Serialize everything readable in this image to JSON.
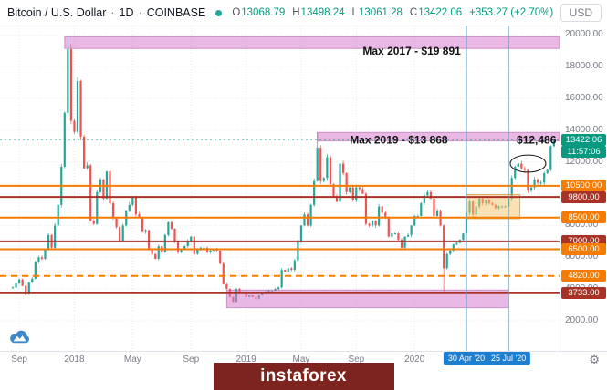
{
  "header": {
    "symbol": "Bitcoin / U.S. Dollar",
    "sep": "·",
    "interval": "1D",
    "exchange": "COINBASE",
    "ohlc": {
      "open_label": "O",
      "open": "13068.79",
      "high_label": "H",
      "high": "13498.24",
      "low_label": "L",
      "low": "13061.28",
      "close_label": "C",
      "close": "13422.06",
      "change": "+353.27 (+2.70%)"
    },
    "currency_button": "USD"
  },
  "icons": {
    "gear": "⚙"
  },
  "watermark": "instaforex",
  "chart_data": {
    "type": "candlestick",
    "title": "Bitcoin / U.S. Dollar · 1D · COINBASE",
    "ylim": [
      100,
      20600
    ],
    "up_color": "#26a69a",
    "down_color": "#ef5350",
    "closes": [
      4100,
      4350,
      4600,
      4200,
      3650,
      4400,
      4650,
      5700,
      6000,
      5900,
      6450,
      7400,
      6600,
      8000,
      9300,
      11700,
      15100,
      19100,
      14600,
      13900,
      17100,
      13600,
      11600,
      11800,
      8300,
      8100,
      10100,
      10900,
      9700,
      11400,
      9400,
      8500,
      7900,
      7000,
      8000,
      8900,
      9300,
      9800,
      8700,
      8500,
      7600,
      7700,
      6500,
      6200,
      5900,
      6700,
      6300,
      7400,
      8200,
      7800,
      7000,
      6300,
      6500,
      6700,
      7000,
      7300,
      6200,
      6500,
      6600,
      6600,
      6300,
      6400,
      6500,
      6400,
      5600,
      4300,
      4000,
      3500,
      3200,
      4000,
      3800,
      3800,
      3500,
      3600,
      3500,
      3400,
      3600,
      3700,
      3800,
      3900,
      3900,
      4000,
      4100,
      5200,
      5100,
      5300,
      5200,
      5800,
      7000,
      8000,
      8700,
      8000,
      9300,
      10800,
      12900,
      10800,
      11000,
      12300,
      10600,
      9800,
      9500,
      11900,
      11300,
      10100,
      10400,
      9600,
      10400,
      10300,
      10000,
      8100,
      8000,
      8300,
      8000,
      9200,
      8800,
      8500,
      7300,
      7500,
      7500,
      7100,
      6600,
      7300,
      7400,
      8000,
      8600,
      8600,
      9400,
      9900,
      10100,
      9700,
      8600,
      8900,
      8000,
      5300,
      6200,
      6400,
      6800,
      6900,
      7100,
      7500,
      8800,
      9500,
      8700,
      9200,
      9700,
      9400,
      9600,
      9400,
      9300,
      9100,
      9200,
      9200,
      9200,
      9700,
      11000,
      11700,
      11900,
      11600,
      11500,
      10200,
      10400,
      10900,
      10700,
      10700,
      11300,
      11500,
      13000,
      13422
    ],
    "wick_overrides": [
      {
        "i": 17,
        "high": 19891
      },
      {
        "i": 94,
        "high": 13868
      },
      {
        "i": 133,
        "low": 3850
      }
    ],
    "grid_prices": [
      2000,
      4000,
      6000,
      8000,
      10000,
      12000,
      14000,
      16000,
      18000,
      20000
    ],
    "price_labels": [
      {
        "text": "20000.00",
        "price": 20000
      },
      {
        "text": "18000.00",
        "price": 18000
      },
      {
        "text": "16000.00",
        "price": 16000
      },
      {
        "text": "14000.00",
        "price": 14000
      },
      {
        "text": "12000.00",
        "price": 12000
      },
      {
        "text": "8000.00",
        "price": 8000
      },
      {
        "text": "6000.00",
        "price": 6000
      },
      {
        "text": "4000.00",
        "price": 4000
      },
      {
        "text": "2000.00",
        "price": 2000
      }
    ],
    "price_badges": [
      {
        "text": "13422.06",
        "price": 13422.06,
        "bg": "#089981"
      },
      {
        "text": "11:57:06",
        "stack": true,
        "bg": "#089981"
      },
      {
        "text": "10500.00",
        "price": 10500,
        "bg": "#f57c00"
      },
      {
        "text": "9800.00",
        "price": 9800,
        "bg": "#a93226"
      },
      {
        "text": "8500.00",
        "price": 8500,
        "bg": "#f57c00"
      },
      {
        "text": "7000.00",
        "price": 7000,
        "bg": "#a93226"
      },
      {
        "text": "6500.00",
        "price": 6500,
        "bg": "#f57c00"
      },
      {
        "text": "4820.00",
        "price": 4820,
        "bg": "#f57c00"
      },
      {
        "text": "3733.00",
        "price": 3733,
        "bg": "#a93226"
      }
    ],
    "hlines": [
      {
        "price": 13422.06,
        "color": "#089981",
        "dash": "2 3",
        "width": 1
      },
      {
        "price": 10500,
        "color": "#f57c00",
        "width": 2
      },
      {
        "price": 9800,
        "color": "#a93226",
        "width": 2
      },
      {
        "price": 8500,
        "color": "#f57c00",
        "width": 2
      },
      {
        "price": 7000,
        "color": "#a93226",
        "width": 2
      },
      {
        "price": 6500,
        "color": "#f57c00",
        "width": 2
      },
      {
        "price": 4820,
        "color": "#f57c00",
        "dash": "7 5",
        "width": 2
      },
      {
        "price": 3733,
        "color": "#a93226",
        "width": 2
      }
    ],
    "vlines": [
      {
        "i": 140,
        "color": "#43a6d9",
        "label": "30 Apr '20",
        "badge_bg": "#1e7fd2"
      },
      {
        "i": 153,
        "color": "#43a6d9",
        "label": "25 Jul '20",
        "badge_bg": "#1e7fd2"
      }
    ],
    "bands": [
      {
        "i1": 16,
        "i2": "right",
        "p1": 19891,
        "p2": 19150,
        "fill": "rgba(217,125,205,0.55)",
        "stroke": "rgba(170,90,160,0.55)",
        "label": "Max 2017  - $19 891",
        "label_i": 108,
        "label_price": 18750
      },
      {
        "i1": 94,
        "i2": "right",
        "p1": 13868,
        "p2": 13330,
        "fill": "rgba(217,125,205,0.55)",
        "stroke": "rgba(170,90,160,0.55)",
        "label": "Max 2019  - $13 868",
        "label_i": 104,
        "label_price": 13150
      },
      {
        "i1": 66,
        "i2": 153,
        "p1": 3930,
        "p2": 2820,
        "fill": "rgba(217,125,205,0.55)",
        "stroke": "rgba(170,90,160,0.55)"
      }
    ],
    "boxes": [
      {
        "i1": 140,
        "i2": 156.5,
        "p1": 9950,
        "p2": 8430,
        "fill": "rgba(245,195,105,0.5)",
        "stroke": "rgba(205,145,45,0.7)"
      }
    ],
    "annotations": [
      {
        "text": "$12,486",
        "i": 155.5,
        "price": 13150
      }
    ],
    "ellipse": {
      "i": 159,
      "price": 11900,
      "rx_i": 5.5,
      "ry_price": 540
    },
    "time_labels": [
      {
        "text": "Sep",
        "i": 2
      },
      {
        "text": "2018",
        "i": 19
      },
      {
        "text": "May",
        "i": 37
      },
      {
        "text": "Sep",
        "i": 55
      },
      {
        "text": "2019",
        "i": 72
      },
      {
        "text": "May",
        "i": 89
      },
      {
        "text": "Sep",
        "i": 106
      },
      {
        "text": "2020",
        "i": 124
      }
    ]
  }
}
